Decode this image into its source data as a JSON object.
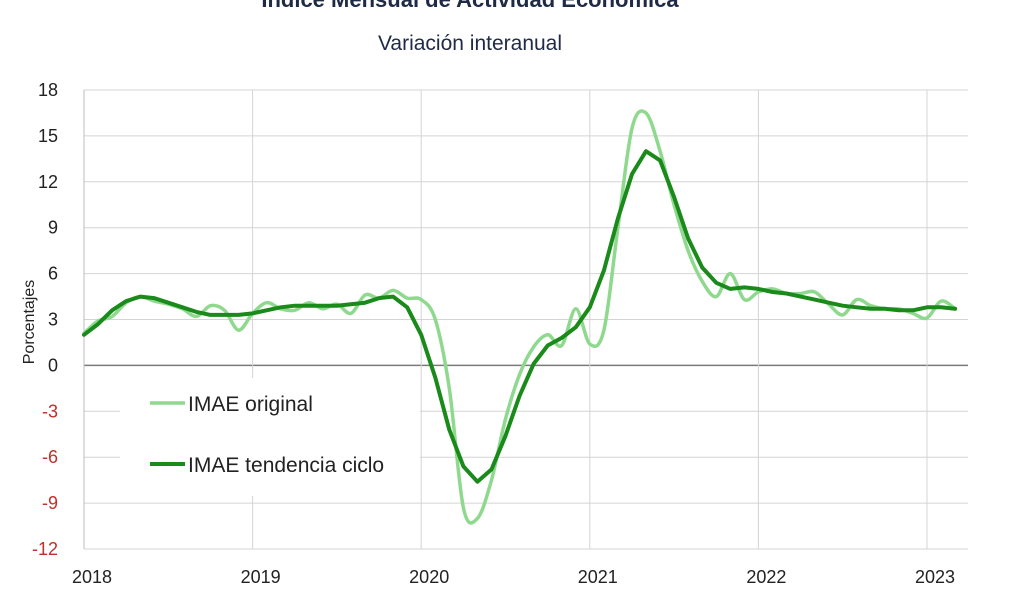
{
  "title": "Índice Mensual de  Actividad Económica",
  "subtitle": "Variación interanual",
  "chart_data": {
    "type": "line",
    "title": "Índice Mensual de  Actividad Económica",
    "subtitle": "Variación interanual",
    "ylabel": "Porcentajes",
    "xlabel": "",
    "ylim": [
      -12,
      18
    ],
    "yticks": [
      18,
      15,
      12,
      9,
      6,
      3,
      0,
      -3,
      -6,
      -9,
      -12
    ],
    "xlim": [
      "2018-01",
      "2023-03"
    ],
    "xtick_labels": [
      "2018",
      "2019",
      "2020",
      "2021",
      "2022",
      "2023"
    ],
    "grid": true,
    "legend": "inside-lower-left",
    "x": [
      "2018-01",
      "2018-02",
      "2018-03",
      "2018-04",
      "2018-05",
      "2018-06",
      "2018-07",
      "2018-08",
      "2018-09",
      "2018-10",
      "2018-11",
      "2018-12",
      "2019-01",
      "2019-02",
      "2019-03",
      "2019-04",
      "2019-05",
      "2019-06",
      "2019-07",
      "2019-08",
      "2019-09",
      "2019-10",
      "2019-11",
      "2019-12",
      "2020-01",
      "2020-02",
      "2020-03",
      "2020-04",
      "2020-05",
      "2020-06",
      "2020-07",
      "2020-08",
      "2020-09",
      "2020-10",
      "2020-11",
      "2020-12",
      "2021-01",
      "2021-02",
      "2021-03",
      "2021-04",
      "2021-05",
      "2021-06",
      "2021-07",
      "2021-08",
      "2021-09",
      "2021-10",
      "2021-11",
      "2021-12",
      "2022-01",
      "2022-02",
      "2022-03",
      "2022-04",
      "2022-05",
      "2022-06",
      "2022-07",
      "2022-08",
      "2022-09",
      "2022-10",
      "2022-11",
      "2022-12",
      "2023-01",
      "2023-02",
      "2023-03"
    ],
    "series": [
      {
        "name": "IMAE original",
        "color": "#8fd98f",
        "values": [
          2.1,
          2.9,
          3.2,
          4.1,
          4.5,
          4.2,
          4.0,
          3.7,
          3.2,
          3.9,
          3.6,
          2.3,
          3.4,
          4.1,
          3.7,
          3.6,
          4.1,
          3.7,
          4.0,
          3.4,
          4.6,
          4.4,
          4.9,
          4.4,
          4.3,
          3.0,
          -1.5,
          -9.3,
          -10.0,
          -7.5,
          -3.5,
          -0.6,
          1.2,
          2.0,
          1.3,
          3.7,
          1.4,
          2.3,
          9.0,
          15.5,
          16.5,
          14.0,
          10.5,
          7.5,
          5.5,
          4.5,
          6.0,
          4.3,
          4.8,
          5.0,
          4.7,
          4.7,
          4.8,
          4.0,
          3.3,
          4.3,
          3.9,
          3.7,
          3.7,
          3.4,
          3.1,
          4.2,
          3.7
        ]
      },
      {
        "name": "IMAE tendencia ciclo",
        "color": "#1a8a1a",
        "values": [
          2.0,
          2.7,
          3.6,
          4.2,
          4.5,
          4.4,
          4.1,
          3.8,
          3.5,
          3.3,
          3.3,
          3.3,
          3.4,
          3.6,
          3.8,
          3.9,
          3.9,
          3.9,
          3.9,
          4.0,
          4.1,
          4.4,
          4.5,
          3.8,
          2.0,
          -0.8,
          -4.2,
          -6.6,
          -7.6,
          -6.8,
          -4.6,
          -2.0,
          0.1,
          1.3,
          1.8,
          2.5,
          3.8,
          6.2,
          9.6,
          12.5,
          14.0,
          13.4,
          11.0,
          8.3,
          6.4,
          5.4,
          5.0,
          5.1,
          5.0,
          4.8,
          4.7,
          4.5,
          4.3,
          4.1,
          3.9,
          3.8,
          3.7,
          3.7,
          3.6,
          3.6,
          3.8,
          3.8,
          3.7
        ]
      }
    ]
  }
}
